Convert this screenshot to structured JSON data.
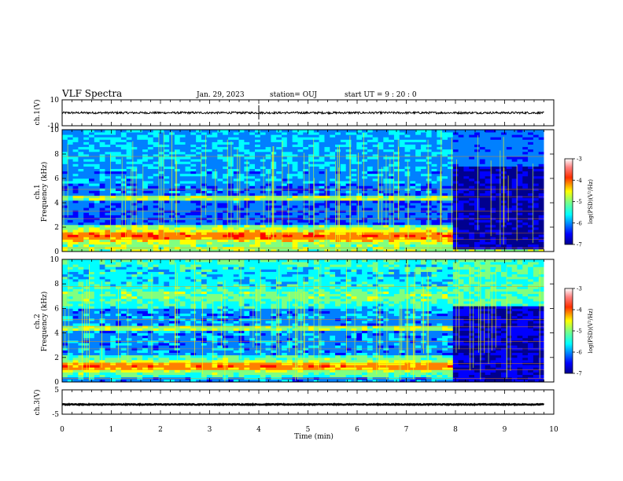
{
  "header": {
    "title": "VLF Spectra",
    "date": "Jan. 29, 2023",
    "station": "station= OUJ",
    "start": "start  UT =   9 : 20 : 0"
  },
  "colors": {
    "colormap": [
      "#00008f",
      "#0000ff",
      "#0080ff",
      "#00ffff",
      "#80ff80",
      "#ffff00",
      "#ff8000",
      "#ff0000",
      "#ffffff"
    ],
    "background": "#ffffff",
    "frame": "#000000"
  },
  "chart_data": [
    {
      "type": "line",
      "name": "ch1-waveform",
      "ylabel": "ch.1(V)",
      "ylim": [
        -10,
        10
      ],
      "yticks": [
        "10",
        "-10"
      ],
      "x": [
        0,
        10
      ],
      "mean_level": 0
    },
    {
      "type": "heatmap",
      "name": "ch1-spectrogram",
      "ylabel": "ch.1\nFrequency (kHz)",
      "ylim": [
        0,
        10
      ],
      "yticks": [
        "0",
        "2",
        "4",
        "6",
        "8",
        "10"
      ],
      "colorbar": {
        "label": "log(PSD)(V²/Hz)",
        "ticks": [
          "-3",
          "-4",
          "-5",
          "-6",
          "-7"
        ],
        "range": [
          -7,
          -3
        ]
      },
      "data_end_min": 9.8,
      "band_change_min": 7.9
    },
    {
      "type": "heatmap",
      "name": "ch2-spectrogram",
      "ylabel": "ch.2\nFrequency (kHz)",
      "ylim": [
        0,
        10
      ],
      "yticks": [
        "0",
        "2",
        "4",
        "6",
        "8",
        "10"
      ],
      "colorbar": {
        "label": "log(PSD)(V²/Hz)",
        "ticks": [
          "-3",
          "-4",
          "-5",
          "-6",
          "-7"
        ],
        "range": [
          -7,
          -3
        ]
      },
      "data_end_min": 9.8,
      "band_change_min": 7.9
    },
    {
      "type": "line",
      "name": "ch3-waveform",
      "ylabel": "ch.3(V)",
      "ylim": [
        -5,
        5
      ],
      "yticks": [
        "5",
        "-5"
      ],
      "x": [
        0,
        10
      ],
      "mean_level": -1
    }
  ],
  "xaxis": {
    "label": "Time (min)",
    "ticks": [
      "0",
      "1",
      "2",
      "3",
      "4",
      "5",
      "6",
      "7",
      "8",
      "9",
      "10"
    ],
    "range": [
      0,
      10
    ]
  }
}
